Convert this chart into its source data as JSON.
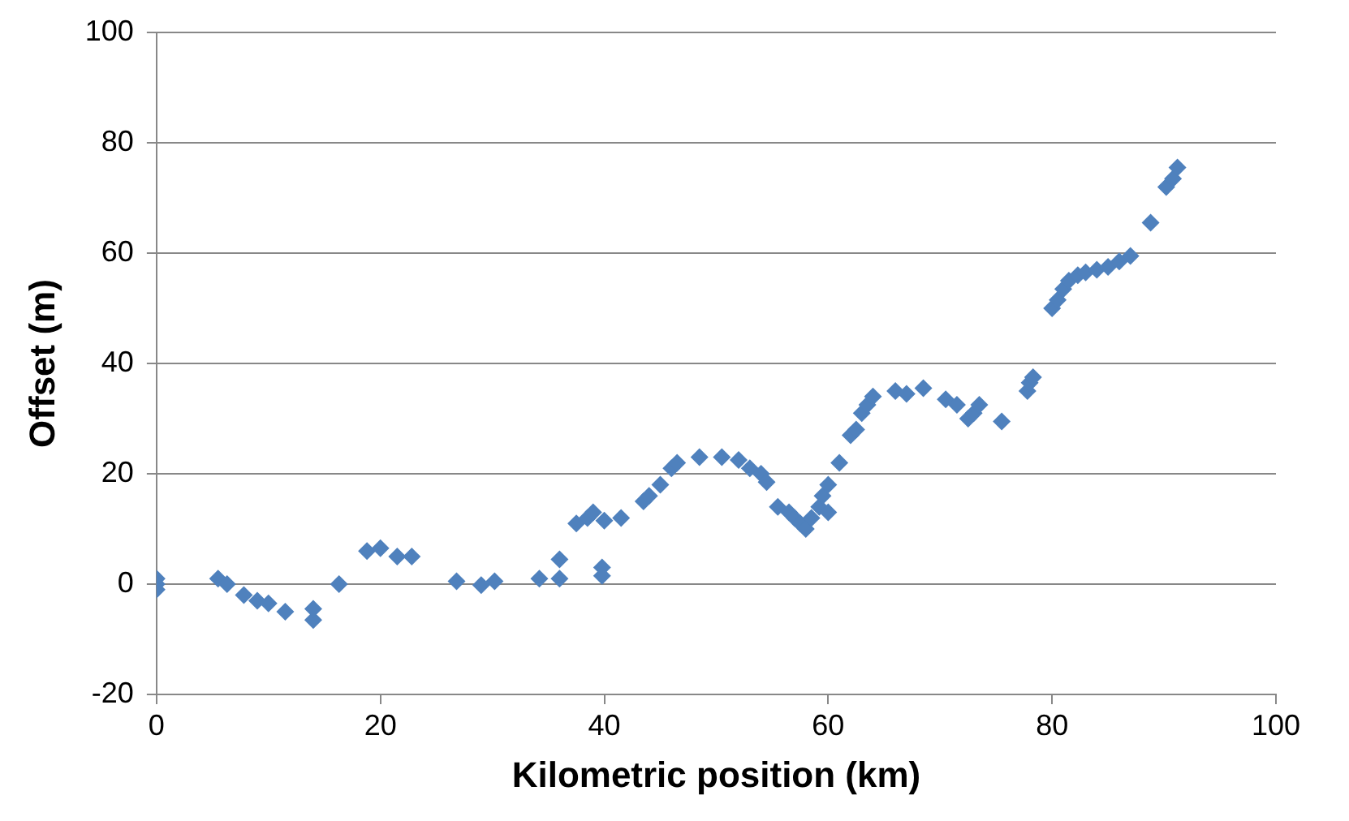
{
  "chart_data": {
    "type": "scatter",
    "xlabel": "Kilometric position (km)",
    "ylabel": "Offset (m)",
    "marker": "diamond",
    "grid": "y",
    "xlim": [
      0,
      100
    ],
    "xticks": [
      0,
      20,
      40,
      60,
      80,
      100
    ],
    "ylim": [
      -20,
      100
    ],
    "yticks": [
      -20,
      0,
      20,
      40,
      60,
      80,
      100
    ],
    "series": [
      {
        "color": "#4f81bd",
        "x": [
          0,
          0,
          0,
          5.5,
          6.3,
          7.8,
          9,
          10,
          11.5,
          14,
          14,
          16.3,
          18.8,
          20,
          21.5,
          22.8,
          26.8,
          29,
          30.2,
          34.2,
          36,
          36,
          37.5,
          38.5,
          39,
          40,
          39.8,
          39.8,
          41.5,
          43.5,
          44,
          45,
          46,
          46.5,
          48.5,
          50.5,
          52,
          53,
          54,
          54.5,
          55.5,
          56.5,
          57,
          57.5,
          58,
          58.5,
          59.2,
          59.5,
          60,
          60,
          61,
          62,
          62.5,
          63,
          63.5,
          64,
          66,
          67,
          68.5,
          70.5,
          71.5,
          72.5,
          73,
          73.5,
          75.5,
          77.8,
          78,
          78.3,
          80,
          80.5,
          81,
          81.5,
          82.3,
          83,
          84,
          85,
          86,
          87,
          88.8,
          90.2,
          90.8,
          91.2
        ],
        "values": [
          1,
          0,
          -1,
          1,
          0,
          -2,
          -3,
          -3.5,
          -5,
          -6.5,
          -4.5,
          0,
          6,
          6.5,
          5,
          5,
          0.5,
          -0.2,
          0.5,
          1,
          1,
          4.5,
          11,
          12,
          13,
          11.5,
          3,
          1.5,
          12,
          15,
          16,
          18,
          21,
          22,
          23,
          23,
          22.5,
          21,
          20,
          18.5,
          14,
          13,
          12,
          11,
          10,
          12,
          14,
          16,
          18,
          13,
          22,
          27,
          28,
          31,
          32.5,
          34,
          35,
          34.5,
          35.5,
          33.5,
          32.5,
          30,
          31,
          32.5,
          29.5,
          35,
          36.5,
          37.5,
          50,
          51.5,
          53.5,
          55,
          56,
          56.5,
          57,
          57.5,
          58.5,
          59.5,
          65.5,
          72,
          73.5,
          75.5
        ]
      }
    ]
  }
}
